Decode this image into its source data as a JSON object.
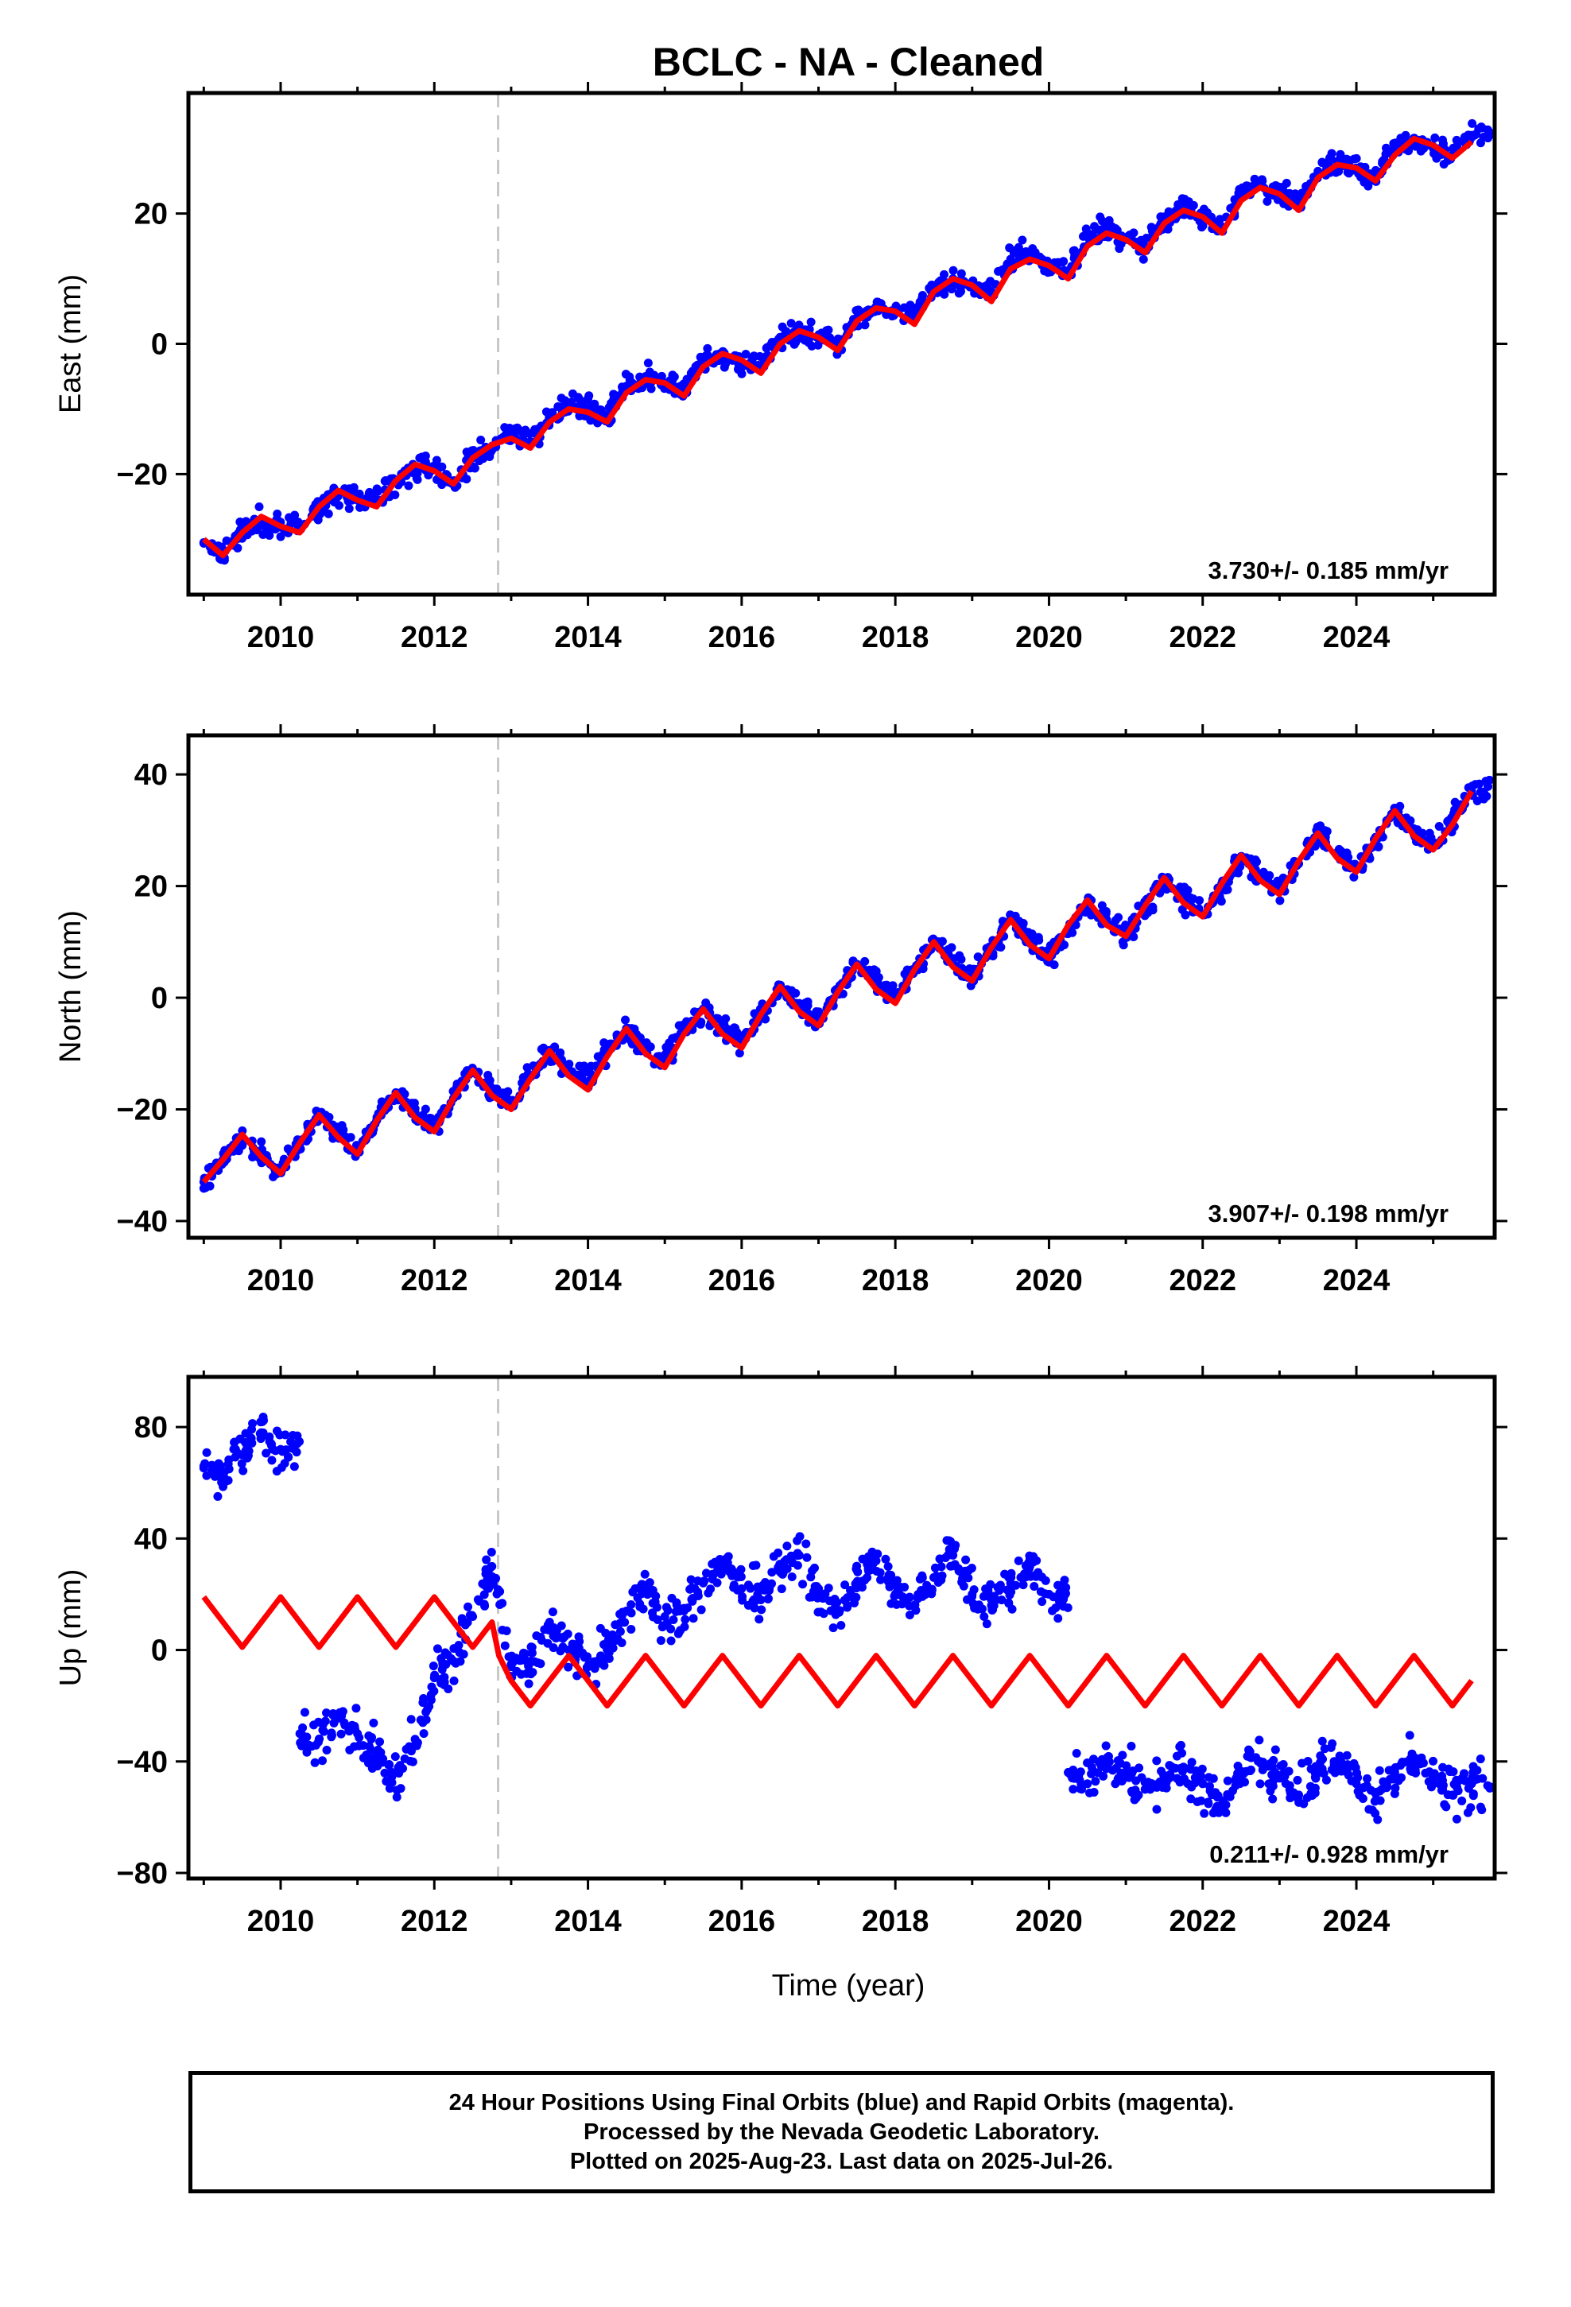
{
  "title": "BCLC  - NA - Cleaned",
  "xlabel": "Time (year)",
  "footer": [
    "24 Hour Positions Using Final Orbits (blue) and Rapid Orbits (magenta).",
    "Processed by the Nevada Geodetic Laboratory.",
    "Plotted on 2025-Aug-23. Last data on 2025-Jul-26."
  ],
  "colors": {
    "data": "#0000ff",
    "model": "#ff0000",
    "event_line": "#c8c8c8",
    "axes": "#000000"
  },
  "chart_data": [
    {
      "type": "scatter",
      "title": "BCLC  - NA - Cleaned",
      "ylabel": "East (mm)",
      "xlabel": "",
      "xlim": [
        2008.8,
        2025.8
      ],
      "ylim": [
        -38.5,
        38.5
      ],
      "xticks": [
        "2010",
        "2012",
        "2014",
        "2016",
        "2018",
        "2020",
        "2022",
        "2024"
      ],
      "yticks": [
        "−20",
        "0",
        "20"
      ],
      "rate_label": "3.730+/- 0.185 mm/yr",
      "event_line_x": 2012.83,
      "grid": false,
      "series": [
        {
          "role": "data",
          "x": [
            2009.0,
            2009.25,
            2009.5,
            2009.75,
            2010.0,
            2010.25,
            2010.5,
            2010.75,
            2011.0,
            2011.25,
            2011.5,
            2011.75,
            2012.0,
            2012.25,
            2012.5,
            2012.75,
            2013.0,
            2013.25,
            2013.5,
            2013.75,
            2014.0,
            2014.25,
            2014.5,
            2014.75,
            2015.0,
            2015.25,
            2015.5,
            2015.75,
            2016.0,
            2016.25,
            2016.5,
            2016.75,
            2017.0,
            2017.25,
            2017.5,
            2017.75,
            2018.0,
            2018.25,
            2018.5,
            2018.75,
            2019.0,
            2019.25,
            2019.5,
            2019.75,
            2020.0,
            2020.25,
            2020.5,
            2020.75,
            2021.0,
            2021.25,
            2021.5,
            2021.75,
            2022.0,
            2022.25,
            2022.5,
            2022.75,
            2023.0,
            2023.25,
            2023.5,
            2023.75,
            2024.0,
            2024.25,
            2024.5,
            2024.75,
            2025.0,
            2025.25,
            2025.5
          ],
          "y": [
            -30.5,
            -32,
            -29,
            -27,
            -28,
            -28.5,
            -25,
            -23,
            -24,
            -24,
            -21,
            -19.5,
            -19,
            -21,
            -17.5,
            -16,
            -14,
            -15,
            -11.5,
            -9.5,
            -10,
            -11,
            -6.5,
            -5,
            -6,
            -7,
            -3,
            -2,
            -3,
            -3.5,
            1,
            2,
            1,
            0,
            4,
            5.5,
            5,
            4,
            8.5,
            10,
            9,
            8,
            13,
            14,
            12,
            11,
            16.5,
            18,
            16,
            15,
            19.5,
            21,
            19,
            18,
            23,
            24.5,
            23,
            21.5,
            26.5,
            28,
            27,
            25.5,
            30,
            31.5,
            30,
            29,
            32
          ]
        },
        {
          "role": "model",
          "x": [
            2009.0,
            2009.25,
            2009.5,
            2009.75,
            2010.0,
            2010.25,
            2010.5,
            2010.75,
            2011.0,
            2011.25,
            2011.5,
            2011.75,
            2012.0,
            2012.25,
            2012.5,
            2012.75,
            2013.0,
            2013.25,
            2013.5,
            2013.75,
            2014.0,
            2014.25,
            2014.5,
            2014.75,
            2015.0,
            2015.25,
            2015.5,
            2015.75,
            2016.0,
            2016.25,
            2016.5,
            2016.75,
            2017.0,
            2017.25,
            2017.5,
            2017.75,
            2018.0,
            2018.25,
            2018.5,
            2018.75,
            2019.0,
            2019.25,
            2019.5,
            2019.75,
            2020.0,
            2020.25,
            2020.5,
            2020.75,
            2021.0,
            2021.25,
            2021.5,
            2021.75,
            2022.0,
            2022.25,
            2022.5,
            2022.75,
            2023.0,
            2023.25,
            2023.5,
            2023.75,
            2024.0,
            2024.25,
            2024.5,
            2024.75,
            2025.0,
            2025.25,
            2025.5
          ],
          "y": [
            -30,
            -32.5,
            -29,
            -26.5,
            -28,
            -29,
            -25,
            -22.5,
            -24,
            -25,
            -21,
            -18.5,
            -19.5,
            -21.5,
            -17.5,
            -15.5,
            -14.5,
            -16,
            -12,
            -10,
            -10.5,
            -12,
            -7.5,
            -5.5,
            -6,
            -8,
            -3.5,
            -1.5,
            -2.5,
            -4.5,
            0,
            2,
            1,
            -1,
            3.5,
            5.5,
            5,
            3,
            8,
            10,
            9,
            6.5,
            11.5,
            13,
            12,
            10,
            15,
            17,
            16,
            14,
            18.5,
            20.5,
            19.5,
            17,
            22,
            24,
            23,
            20.5,
            25.5,
            27.5,
            27,
            25,
            29,
            31.5,
            30.5,
            28.5,
            31
          ]
        }
      ]
    },
    {
      "type": "scatter",
      "title": "",
      "ylabel": "North (mm)",
      "xlabel": "",
      "xlim": [
        2008.8,
        2025.8
      ],
      "ylim": [
        -43,
        47
      ],
      "xticks": [
        "2010",
        "2012",
        "2014",
        "2016",
        "2018",
        "2020",
        "2022",
        "2024"
      ],
      "yticks": [
        "−40",
        "−20",
        "0",
        "20",
        "40"
      ],
      "rate_label": "3.907+/- 0.198 mm/yr",
      "event_line_x": 2012.83,
      "grid": false,
      "series": [
        {
          "role": "data",
          "x": [
            2009.0,
            2009.25,
            2009.5,
            2009.75,
            2010.0,
            2010.25,
            2010.5,
            2010.75,
            2011.0,
            2011.25,
            2011.5,
            2011.75,
            2012.0,
            2012.25,
            2012.5,
            2012.75,
            2013.0,
            2013.25,
            2013.5,
            2013.75,
            2014.0,
            2014.25,
            2014.5,
            2014.75,
            2015.0,
            2015.25,
            2015.5,
            2015.75,
            2016.0,
            2016.25,
            2016.5,
            2016.75,
            2017.0,
            2017.25,
            2017.5,
            2017.75,
            2018.0,
            2018.25,
            2018.5,
            2018.75,
            2019.0,
            2019.25,
            2019.5,
            2019.75,
            2020.0,
            2020.25,
            2020.5,
            2020.75,
            2021.0,
            2021.25,
            2021.5,
            2021.75,
            2022.0,
            2022.25,
            2022.5,
            2022.75,
            2023.0,
            2023.25,
            2023.5,
            2023.75,
            2024.0,
            2024.25,
            2024.5,
            2024.75,
            2025.0,
            2025.25,
            2025.5
          ],
          "y": [
            -33,
            -29,
            -25,
            -28,
            -31,
            -26,
            -21,
            -24,
            -27,
            -22,
            -17,
            -20.5,
            -23,
            -18,
            -13,
            -16.5,
            -19,
            -14,
            -9.5,
            -13,
            -15,
            -10,
            -5.5,
            -9,
            -11,
            -6,
            -2,
            -5,
            -8,
            -3,
            2,
            -1,
            -4,
            1,
            6,
            3,
            0,
            5,
            10,
            7,
            4,
            9,
            14,
            11,
            7,
            12,
            17,
            14,
            11,
            16,
            21,
            18,
            15,
            20,
            25,
            22,
            19,
            24,
            29,
            26,
            23,
            28,
            33,
            30,
            27,
            32,
            37
          ]
        },
        {
          "role": "model",
          "x": [
            2009.0,
            2009.25,
            2009.5,
            2009.75,
            2010.0,
            2010.25,
            2010.5,
            2010.75,
            2011.0,
            2011.25,
            2011.5,
            2011.75,
            2012.0,
            2012.25,
            2012.5,
            2012.75,
            2013.0,
            2013.25,
            2013.5,
            2013.75,
            2014.0,
            2014.25,
            2014.5,
            2014.75,
            2015.0,
            2015.25,
            2015.5,
            2015.75,
            2016.0,
            2016.25,
            2016.5,
            2016.75,
            2017.0,
            2017.25,
            2017.5,
            2017.75,
            2018.0,
            2018.25,
            2018.5,
            2018.75,
            2019.0,
            2019.25,
            2019.5,
            2019.75,
            2020.0,
            2020.25,
            2020.5,
            2020.75,
            2021.0,
            2021.25,
            2021.5,
            2021.75,
            2022.0,
            2022.25,
            2022.5,
            2022.75,
            2023.0,
            2023.25,
            2023.5,
            2023.75,
            2024.0,
            2024.25,
            2024.5,
            2024.75,
            2025.0,
            2025.25,
            2025.5
          ],
          "y": [
            -33,
            -29,
            -24.5,
            -28.5,
            -31.5,
            -26,
            -21,
            -25,
            -28,
            -22,
            -17,
            -21.5,
            -24,
            -18,
            -13,
            -17.5,
            -20,
            -14.5,
            -9.5,
            -14,
            -16.5,
            -10.5,
            -5.5,
            -10,
            -12.5,
            -6.5,
            -2,
            -6.5,
            -9,
            -3,
            2,
            -2.5,
            -5,
            1,
            6,
            1.5,
            -1,
            5,
            10,
            5.5,
            3,
            9,
            14,
            9.5,
            7,
            13,
            17.5,
            13,
            11,
            16.5,
            21.5,
            17,
            14.5,
            20.5,
            25.5,
            21,
            18.5,
            24.5,
            29.5,
            25,
            22.5,
            28.5,
            33.5,
            29,
            26.5,
            31,
            37
          ]
        }
      ]
    },
    {
      "type": "scatter",
      "title": "",
      "ylabel": "Up (mm)",
      "xlabel": "Time (year)",
      "xlim": [
        2008.8,
        2025.8
      ],
      "ylim": [
        -82,
        98
      ],
      "xticks": [
        "2010",
        "2012",
        "2014",
        "2016",
        "2018",
        "2020",
        "2022",
        "2024"
      ],
      "yticks": [
        "−80",
        "−40",
        "0",
        "40",
        "80"
      ],
      "rate_label": "0.211+/- 0.928 mm/yr",
      "event_line_x": 2012.83,
      "grid": false,
      "series": [
        {
          "role": "data",
          "x": [
            2009.0,
            2009.25,
            2009.5,
            2009.75,
            2010.0,
            2010.25,
            2010.5,
            2010.75,
            2011.0,
            2011.25,
            2011.5,
            2011.75,
            2012.0,
            2012.25,
            2012.5,
            2012.75,
            2013.0,
            2013.25,
            2013.5,
            2013.75,
            2014.0,
            2014.25,
            2014.5,
            2014.75,
            2015.0,
            2015.25,
            2015.5,
            2015.75,
            2016.0,
            2016.25,
            2016.5,
            2016.75,
            2017.0,
            2017.25,
            2017.5,
            2017.75,
            2018.0,
            2018.25,
            2018.5,
            2018.75,
            2019.0,
            2019.25,
            2019.5,
            2019.75,
            2020.0,
            2020.25,
            2020.5,
            2020.75,
            2021.0,
            2021.25,
            2021.5,
            2021.75,
            2022.0,
            2022.25,
            2022.5,
            2022.75,
            2023.0,
            2023.25,
            2023.5,
            2023.75,
            2024.0,
            2024.25,
            2024.5,
            2024.75,
            2025.0,
            2025.25,
            2025.5
          ],
          "y": [
            66,
            64,
            70,
            78,
            72,
            -30,
            -32,
            -24,
            -30,
            -38,
            -44,
            -32,
            -10,
            -4,
            12,
            30,
            -6,
            -4,
            10,
            0,
            -6,
            0,
            14,
            22,
            12,
            14,
            24,
            32,
            22,
            18,
            28,
            34,
            20,
            14,
            24,
            32,
            20,
            16,
            26,
            34,
            20,
            16,
            24,
            30,
            20,
            -44,
            -48,
            -40,
            -44,
            -50,
            -46,
            -42,
            -48,
            -56,
            -44,
            -40,
            -46,
            -52,
            -42,
            -40,
            -48,
            -54,
            -44,
            -40,
            -46,
            -52,
            -48
          ]
        },
        {
          "role": "model",
          "x": [
            2009.0,
            2009.25,
            2009.5,
            2009.75,
            2010.0,
            2010.25,
            2010.5,
            2010.75,
            2011.0,
            2011.25,
            2011.5,
            2011.75,
            2012.0,
            2012.25,
            2012.5,
            2012.75,
            2012.84,
            2013.0,
            2013.25,
            2013.5,
            2013.75,
            2014.0,
            2014.25,
            2014.5,
            2014.75,
            2015.0,
            2015.25,
            2015.5,
            2015.75,
            2016.0,
            2016.25,
            2016.5,
            2016.75,
            2017.0,
            2017.25,
            2017.5,
            2017.75,
            2018.0,
            2018.25,
            2018.5,
            2018.75,
            2019.0,
            2019.25,
            2019.5,
            2019.75,
            2020.0,
            2020.25,
            2020.5,
            2020.75,
            2021.0,
            2021.25,
            2021.5,
            2021.75,
            2022.0,
            2022.25,
            2022.5,
            2022.75,
            2023.0,
            2023.25,
            2023.5,
            2023.75,
            2024.0,
            2024.25,
            2024.5,
            2024.75,
            2025.0,
            2025.25,
            2025.5
          ],
          "y": [
            19,
            10,
            1,
            10,
            19,
            10,
            1,
            10,
            19,
            10,
            1,
            10,
            19,
            10,
            1,
            10,
            -2,
            -11,
            -20,
            -11,
            -2,
            -11,
            -20,
            -11,
            -2,
            -11,
            -20,
            -11,
            -2,
            -11,
            -20,
            -11,
            -2,
            -11,
            -20,
            -11,
            -2,
            -11,
            -20,
            -11,
            -2,
            -11,
            -20,
            -11,
            -2,
            -11,
            -20,
            -11,
            -2,
            -11,
            -20,
            -11,
            -2,
            -11,
            -20,
            -11,
            -2,
            -11,
            -20,
            -11,
            -2,
            -11,
            -20,
            -11,
            -2,
            -11,
            -20,
            -11
          ]
        }
      ]
    }
  ]
}
